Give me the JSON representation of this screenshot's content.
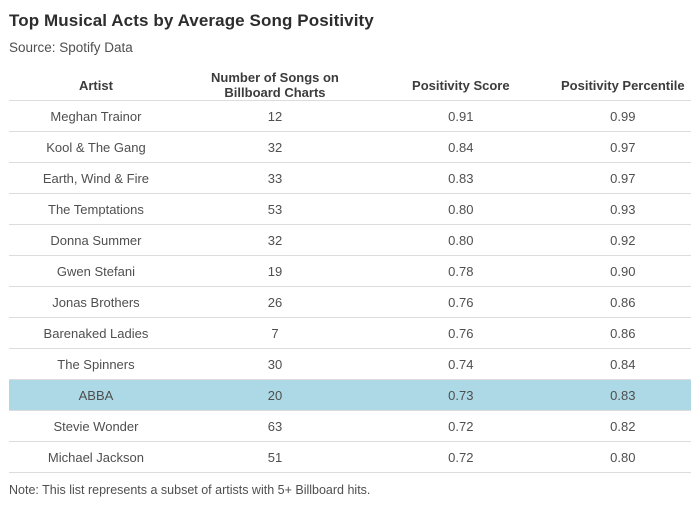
{
  "page": {
    "title": "Top Musical Acts by Average Song Positivity",
    "source": "Source: Spotify Data",
    "note": "Note: This list represents a subset of artists with 5+ Billboard hits."
  },
  "colors": {
    "highlight": "#ADD8E6",
    "border": "#DCDCDC"
  },
  "table": {
    "columns": [
      "Artist",
      "Number of Songs on Billboard Charts",
      "Positivity Score",
      "Positivity Percentile"
    ],
    "rows": [
      {
        "artist": "Meghan Trainor",
        "songs": "12",
        "score": "0.91",
        "percentile": "0.99",
        "highlighted": false
      },
      {
        "artist": "Kool & The Gang",
        "songs": "32",
        "score": "0.84",
        "percentile": "0.97",
        "highlighted": false
      },
      {
        "artist": "Earth, Wind & Fire",
        "songs": "33",
        "score": "0.83",
        "percentile": "0.97",
        "highlighted": false
      },
      {
        "artist": "The Temptations",
        "songs": "53",
        "score": "0.80",
        "percentile": "0.93",
        "highlighted": false
      },
      {
        "artist": "Donna Summer",
        "songs": "32",
        "score": "0.80",
        "percentile": "0.92",
        "highlighted": false
      },
      {
        "artist": "Gwen Stefani",
        "songs": "19",
        "score": "0.78",
        "percentile": "0.90",
        "highlighted": false
      },
      {
        "artist": "Jonas Brothers",
        "songs": "26",
        "score": "0.76",
        "percentile": "0.86",
        "highlighted": false
      },
      {
        "artist": "Barenaked Ladies",
        "songs": "7",
        "score": "0.76",
        "percentile": "0.86",
        "highlighted": false
      },
      {
        "artist": "The Spinners",
        "songs": "30",
        "score": "0.74",
        "percentile": "0.84",
        "highlighted": false
      },
      {
        "artist": "ABBA",
        "songs": "20",
        "score": "0.73",
        "percentile": "0.83",
        "highlighted": true
      },
      {
        "artist": "Stevie Wonder",
        "songs": "63",
        "score": "0.72",
        "percentile": "0.82",
        "highlighted": false
      },
      {
        "artist": "Michael Jackson",
        "songs": "51",
        "score": "0.72",
        "percentile": "0.80",
        "highlighted": false
      }
    ]
  },
  "chart_data": {
    "type": "table",
    "title": "Top Musical Acts by Average Song Positivity",
    "subtitle": "Source: Spotify Data",
    "note": "Note: This list represents a subset of artists with 5+ Billboard hits.",
    "columns": [
      "Artist",
      "Number of Songs on Billboard Charts",
      "Positivity Score",
      "Positivity Percentile"
    ],
    "rows": [
      [
        "Meghan Trainor",
        12,
        0.91,
        0.99
      ],
      [
        "Kool & The Gang",
        32,
        0.84,
        0.97
      ],
      [
        "Earth, Wind & Fire",
        33,
        0.83,
        0.97
      ],
      [
        "The Temptations",
        53,
        0.8,
        0.93
      ],
      [
        "Donna Summer",
        32,
        0.8,
        0.92
      ],
      [
        "Gwen Stefani",
        19,
        0.78,
        0.9
      ],
      [
        "Jonas Brothers",
        26,
        0.76,
        0.86
      ],
      [
        "Barenaked Ladies",
        7,
        0.76,
        0.86
      ],
      [
        "The Spinners",
        30,
        0.74,
        0.84
      ],
      [
        "ABBA",
        20,
        0.73,
        0.83
      ],
      [
        "Stevie Wonder",
        63,
        0.72,
        0.82
      ],
      [
        "Michael Jackson",
        51,
        0.72,
        0.8
      ]
    ],
    "highlighted_row": "ABBA",
    "highlight_color": "#ADD8E6"
  }
}
